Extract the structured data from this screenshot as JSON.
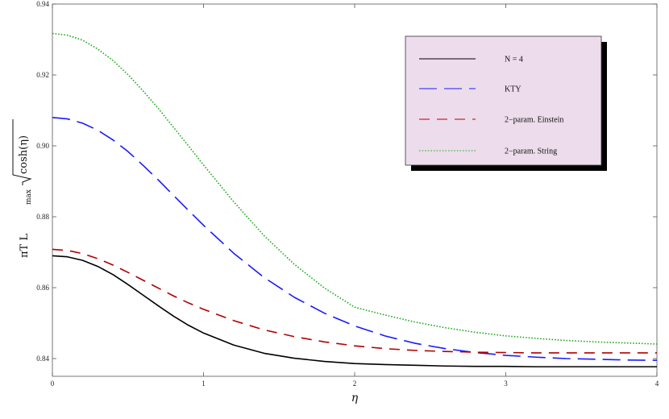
{
  "chart_data": {
    "type": "line",
    "title": "",
    "xlabel": "η",
    "ylabel": "πT L",
    "ylabel_subscript": "max",
    "ylabel_sqrt": "cosh(η)",
    "xlim": [
      0,
      4
    ],
    "ylim": [
      0.835,
      0.94
    ],
    "xticks": [
      {
        "value": 0,
        "label": "0"
      },
      {
        "value": 1,
        "label": "1"
      },
      {
        "value": 2,
        "label": "2"
      },
      {
        "value": 3,
        "label": "3"
      },
      {
        "value": 4,
        "label": "4"
      }
    ],
    "yticks": [
      {
        "value": 0.84,
        "label": "0.84"
      },
      {
        "value": 0.86,
        "label": "0.86"
      },
      {
        "value": 0.88,
        "label": "0.88"
      },
      {
        "value": 0.9,
        "label": "0.90"
      },
      {
        "value": 0.92,
        "label": "0.92"
      },
      {
        "value": 0.94,
        "label": "0.94"
      }
    ],
    "grid": false,
    "legend_position": "top-right",
    "x": [
      0,
      0.1,
      0.2,
      0.3,
      0.4,
      0.5,
      0.6,
      0.7,
      0.8,
      0.9,
      1.0,
      1.2,
      1.4,
      1.6,
      1.8,
      2.0,
      2.2,
      2.4,
      2.6,
      2.8,
      3.0,
      3.2,
      3.4,
      3.6,
      3.8,
      4.0
    ],
    "series": [
      {
        "name": "N = 4",
        "color": "#000000",
        "dash": "solid",
        "values": [
          0.869,
          0.8687,
          0.8677,
          0.866,
          0.8637,
          0.8609,
          0.8579,
          0.8549,
          0.852,
          0.8494,
          0.8472,
          0.8438,
          0.8415,
          0.8401,
          0.8392,
          0.8386,
          0.8383,
          0.8381,
          0.8379,
          0.8378,
          0.8378,
          0.8377,
          0.8377,
          0.8377,
          0.8377,
          0.8377
        ]
      },
      {
        "name": "KTY",
        "color": "#1a1aff",
        "dash": "long",
        "values": [
          0.908,
          0.9076,
          0.9064,
          0.9044,
          0.9017,
          0.8984,
          0.8945,
          0.8904,
          0.8861,
          0.8818,
          0.8776,
          0.8697,
          0.8629,
          0.8573,
          0.8528,
          0.8492,
          0.8464,
          0.8443,
          0.8428,
          0.8417,
          0.8409,
          0.8404,
          0.84,
          0.8398,
          0.8396,
          0.8395
        ]
      },
      {
        "name": "2−param. Einstein",
        "color": "#b20000",
        "dash": "medium",
        "values": [
          0.8708,
          0.8705,
          0.8696,
          0.8682,
          0.8664,
          0.8643,
          0.8621,
          0.8599,
          0.8577,
          0.8557,
          0.8539,
          0.8507,
          0.8481,
          0.8462,
          0.8447,
          0.8436,
          0.8428,
          0.8423,
          0.842,
          0.8418,
          0.8417,
          0.8416,
          0.8416,
          0.8416,
          0.8416,
          0.8416
        ]
      },
      {
        "name": "2−param. String",
        "color": "#22aa22",
        "dash": "dotted",
        "values": [
          0.9317,
          0.9312,
          0.9298,
          0.9273,
          0.9241,
          0.9201,
          0.9155,
          0.9106,
          0.9053,
          0.9,
          0.8946,
          0.8842,
          0.8747,
          0.8666,
          0.8599,
          0.8545,
          0.8523,
          0.8503,
          0.8487,
          0.8474,
          0.8464,
          0.8457,
          0.8451,
          0.8447,
          0.8444,
          0.8441
        ]
      }
    ]
  }
}
